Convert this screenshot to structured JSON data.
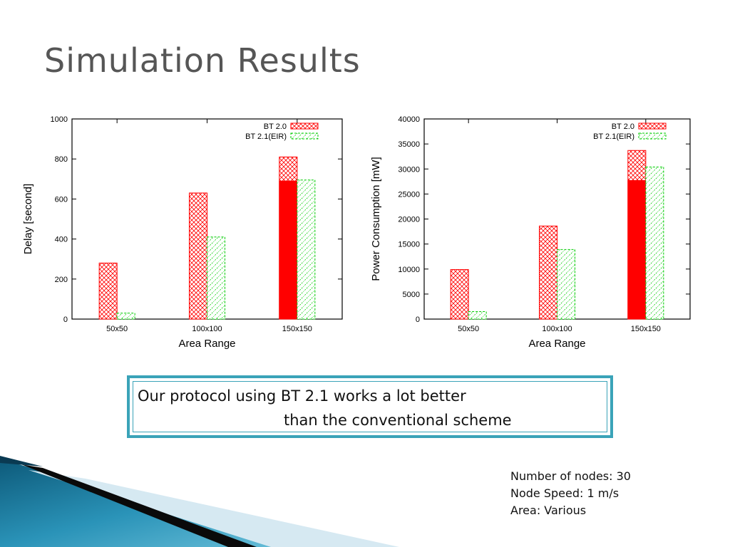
{
  "slide": {
    "title": "Simulation Results",
    "note": {
      "line1": "Our protocol using BT 2.1 works a lot better",
      "line2": "than the conventional scheme"
    },
    "params": [
      "Number of nodes: 30",
      "Node Speed: 1 m/s",
      "Area: Various"
    ]
  },
  "colors": {
    "bt20": "#ff0000",
    "bt21": "#00cc00",
    "title": "#565656",
    "box_border": "#3aa3b8"
  },
  "chart_data": [
    {
      "type": "bar",
      "categories": [
        "50x50",
        "100x100",
        "150x150"
      ],
      "series": [
        {
          "name": "BT 2.0",
          "values": [
            280,
            630,
            810
          ],
          "solid_portion": [
            0,
            0,
            690
          ]
        },
        {
          "name": "BT 2.1(EIR)",
          "values": [
            30,
            410,
            695
          ]
        }
      ],
      "xlabel": "Area Range",
      "ylabel": "Delay [second]",
      "ylim": [
        0,
        1000
      ],
      "yticks": [
        0,
        200,
        400,
        600,
        800,
        1000
      ],
      "legend": "top-right",
      "grid": false
    },
    {
      "type": "bar",
      "categories": [
        "50x50",
        "100x100",
        "150x150"
      ],
      "series": [
        {
          "name": "BT 2.0",
          "values": [
            9900,
            18600,
            33700
          ],
          "solid_portion": [
            0,
            0,
            27700
          ]
        },
        {
          "name": "BT 2.1(EIR)",
          "values": [
            1500,
            13900,
            30400
          ]
        }
      ],
      "xlabel": "Area Range",
      "ylabel": "Power Consumption [mW]",
      "ylim": [
        0,
        40000
      ],
      "yticks": [
        0,
        5000,
        10000,
        15000,
        20000,
        25000,
        30000,
        35000,
        40000
      ],
      "legend": "top-right",
      "grid": false
    }
  ]
}
